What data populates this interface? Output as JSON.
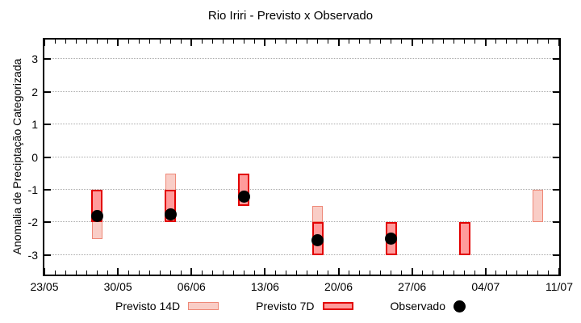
{
  "chart_data": {
    "type": "bar",
    "title": "Rio Iriri - Previsto x Observado",
    "ylabel": "Anomalia de Preciptação Categorizada",
    "xlabel": "",
    "ylim": [
      -3.6,
      3.6
    ],
    "yticks": [
      3,
      2,
      1,
      0,
      -1,
      -2,
      -3
    ],
    "grid": {
      "horizontal": true,
      "style": "dotted",
      "color": "#aaaaaa"
    },
    "legend_position": "bottom",
    "x_axis": {
      "unit": "days_from_first_tick",
      "domain": [
        0,
        49
      ],
      "minor_tick_every_days": 1,
      "major_tick_every_days": 7,
      "ticks": [
        {
          "day": 0,
          "label": "23/05"
        },
        {
          "day": 7,
          "label": "30/05"
        },
        {
          "day": 14,
          "label": "06/06"
        },
        {
          "day": 21,
          "label": "13/06"
        },
        {
          "day": 28,
          "label": "20/06"
        },
        {
          "day": 35,
          "label": "27/06"
        },
        {
          "day": 42,
          "label": "04/07"
        },
        {
          "day": 49,
          "label": "11/07"
        }
      ]
    },
    "series": [
      {
        "name": "Previsto 14D",
        "type": "range_bar",
        "fill": "#f9cdc6",
        "stroke": "#ee8877",
        "points": [
          {
            "date": "28/05",
            "day": 5,
            "from": -1,
            "to": -2.5
          },
          {
            "date": "04/06",
            "day": 12,
            "from": -0.5,
            "to": -2
          },
          {
            "date": "18/06",
            "day": 26,
            "from": -1.5,
            "to": -2
          },
          {
            "date": "09/07",
            "day": 47,
            "from": -1,
            "to": -2
          }
        ]
      },
      {
        "name": "Previsto 7D",
        "type": "range_bar",
        "fill": "#ff9b9b",
        "stroke": "#e20000",
        "points": [
          {
            "date": "28/05",
            "day": 5,
            "from": -1,
            "to": -2
          },
          {
            "date": "04/06",
            "day": 12,
            "from": -1,
            "to": -2
          },
          {
            "date": "11/06",
            "day": 19,
            "from": -0.5,
            "to": -1.5
          },
          {
            "date": "18/06",
            "day": 26,
            "from": -2,
            "to": -3
          },
          {
            "date": "25/06",
            "day": 33,
            "from": -2,
            "to": -3
          },
          {
            "date": "02/07",
            "day": 40,
            "from": -2,
            "to": -3
          }
        ]
      },
      {
        "name": "Observado",
        "type": "scatter",
        "fill": "#000000",
        "points": [
          {
            "date": "28/05",
            "day": 5,
            "value": -1.8
          },
          {
            "date": "04/06",
            "day": 12,
            "value": -1.75
          },
          {
            "date": "11/06",
            "day": 19,
            "value": -1.2
          },
          {
            "date": "18/06",
            "day": 26,
            "value": -2.55
          },
          {
            "date": "25/06",
            "day": 33,
            "value": -2.5
          }
        ]
      }
    ],
    "legend": {
      "items": [
        {
          "label": "Previsto 14D",
          "swatch": "bar"
        },
        {
          "label": "Previsto 7D",
          "swatch": "bar"
        },
        {
          "label": "Observado",
          "swatch": "dot"
        }
      ]
    }
  }
}
